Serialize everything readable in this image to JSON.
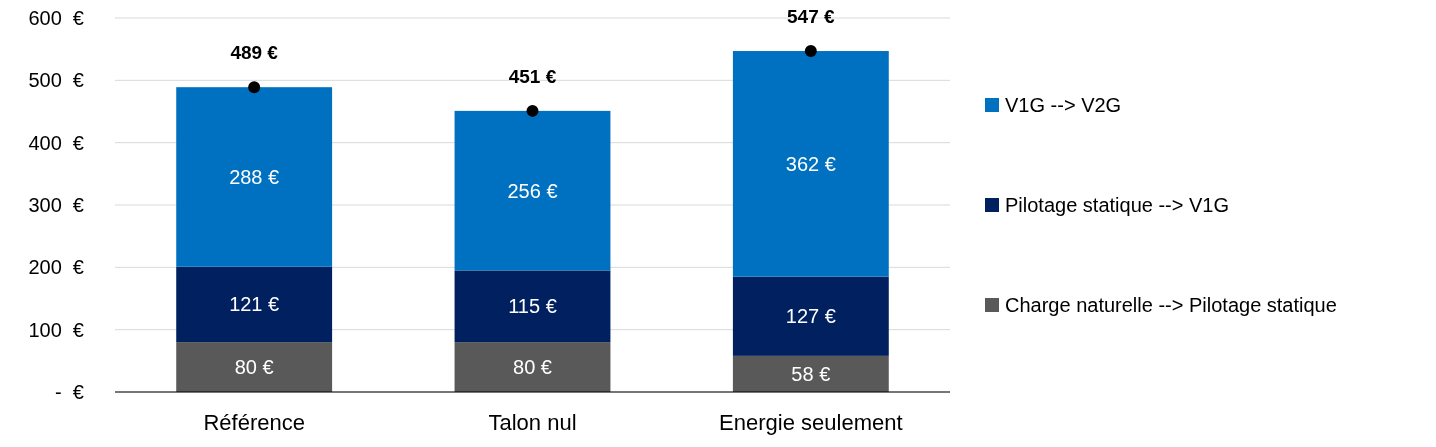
{
  "chart_data": {
    "type": "bar",
    "stacked": true,
    "categories": [
      "Référence",
      "Talon nul",
      "Energie seulement"
    ],
    "series": [
      {
        "name": "Charge naturelle --> Pilotage statique",
        "color": "#595959",
        "values": [
          80,
          80,
          58
        ],
        "value_labels": [
          "80 €",
          "80 €",
          "58 €"
        ]
      },
      {
        "name": "Pilotage statique --> V1G",
        "color": "#002060",
        "values": [
          121,
          115,
          127
        ],
        "value_labels": [
          "121 €",
          "115 €",
          "127 €"
        ]
      },
      {
        "name": "V1G --> V2G",
        "color": "#0070c0",
        "values": [
          288,
          256,
          362
        ],
        "value_labels": [
          "288 €",
          "256 €",
          "362 €"
        ]
      },
      {
        "type": "scatter",
        "x": [
          "Référence",
          "Talon nul",
          "Energie seulement"
        ],
        "color": "#000000",
        "marker": "circle",
        "values": [
          489,
          451,
          547
        ],
        "value_labels": [
          "489 €",
          "451 €",
          "547 €"
        ]
      }
    ],
    "ylim": [
      0,
      600
    ],
    "yticks": [
      {
        "value": 0,
        "label": "-  €"
      },
      {
        "value": 100,
        "label": "100  €"
      },
      {
        "value": 200,
        "label": "200  €"
      },
      {
        "value": 300,
        "label": "300  €"
      },
      {
        "value": 400,
        "label": "400  €"
      },
      {
        "value": 500,
        "label": "500  €"
      },
      {
        "value": 600,
        "label": "600  €"
      }
    ],
    "grid": "y",
    "legend": "right"
  }
}
